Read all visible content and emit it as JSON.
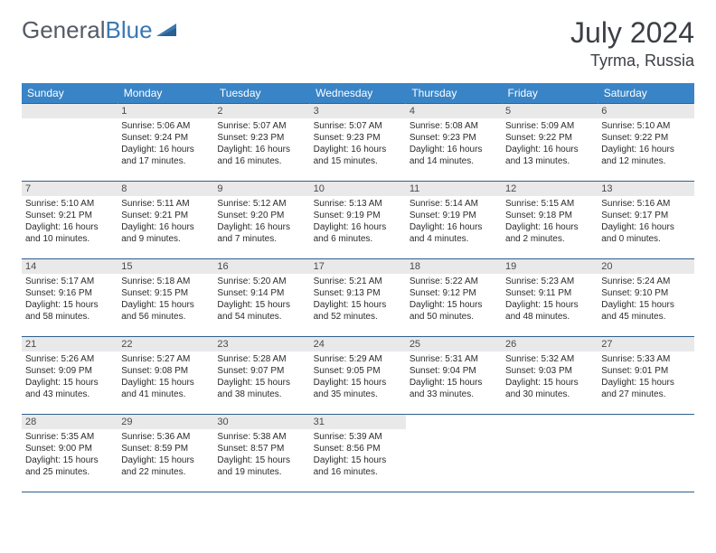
{
  "brand": {
    "general": "General",
    "blue": "Blue"
  },
  "title": "July 2024",
  "location": "Tyrma, Russia",
  "weekdays": [
    "Sunday",
    "Monday",
    "Tuesday",
    "Wednesday",
    "Thursday",
    "Friday",
    "Saturday"
  ],
  "colors": {
    "header_bg": "#3984c6",
    "header_text": "#ffffff",
    "daynum_bg": "#e9e9e9",
    "border": "#2f5f8f",
    "brand_gray": "#555b66",
    "brand_blue": "#3a78b3"
  },
  "days": [
    {
      "n": 1,
      "sr": "5:06 AM",
      "ss": "9:24 PM",
      "dl": "16 hours and 17 minutes."
    },
    {
      "n": 2,
      "sr": "5:07 AM",
      "ss": "9:23 PM",
      "dl": "16 hours and 16 minutes."
    },
    {
      "n": 3,
      "sr": "5:07 AM",
      "ss": "9:23 PM",
      "dl": "16 hours and 15 minutes."
    },
    {
      "n": 4,
      "sr": "5:08 AM",
      "ss": "9:23 PM",
      "dl": "16 hours and 14 minutes."
    },
    {
      "n": 5,
      "sr": "5:09 AM",
      "ss": "9:22 PM",
      "dl": "16 hours and 13 minutes."
    },
    {
      "n": 6,
      "sr": "5:10 AM",
      "ss": "9:22 PM",
      "dl": "16 hours and 12 minutes."
    },
    {
      "n": 7,
      "sr": "5:10 AM",
      "ss": "9:21 PM",
      "dl": "16 hours and 10 minutes."
    },
    {
      "n": 8,
      "sr": "5:11 AM",
      "ss": "9:21 PM",
      "dl": "16 hours and 9 minutes."
    },
    {
      "n": 9,
      "sr": "5:12 AM",
      "ss": "9:20 PM",
      "dl": "16 hours and 7 minutes."
    },
    {
      "n": 10,
      "sr": "5:13 AM",
      "ss": "9:19 PM",
      "dl": "16 hours and 6 minutes."
    },
    {
      "n": 11,
      "sr": "5:14 AM",
      "ss": "9:19 PM",
      "dl": "16 hours and 4 minutes."
    },
    {
      "n": 12,
      "sr": "5:15 AM",
      "ss": "9:18 PM",
      "dl": "16 hours and 2 minutes."
    },
    {
      "n": 13,
      "sr": "5:16 AM",
      "ss": "9:17 PM",
      "dl": "16 hours and 0 minutes."
    },
    {
      "n": 14,
      "sr": "5:17 AM",
      "ss": "9:16 PM",
      "dl": "15 hours and 58 minutes."
    },
    {
      "n": 15,
      "sr": "5:18 AM",
      "ss": "9:15 PM",
      "dl": "15 hours and 56 minutes."
    },
    {
      "n": 16,
      "sr": "5:20 AM",
      "ss": "9:14 PM",
      "dl": "15 hours and 54 minutes."
    },
    {
      "n": 17,
      "sr": "5:21 AM",
      "ss": "9:13 PM",
      "dl": "15 hours and 52 minutes."
    },
    {
      "n": 18,
      "sr": "5:22 AM",
      "ss": "9:12 PM",
      "dl": "15 hours and 50 minutes."
    },
    {
      "n": 19,
      "sr": "5:23 AM",
      "ss": "9:11 PM",
      "dl": "15 hours and 48 minutes."
    },
    {
      "n": 20,
      "sr": "5:24 AM",
      "ss": "9:10 PM",
      "dl": "15 hours and 45 minutes."
    },
    {
      "n": 21,
      "sr": "5:26 AM",
      "ss": "9:09 PM",
      "dl": "15 hours and 43 minutes."
    },
    {
      "n": 22,
      "sr": "5:27 AM",
      "ss": "9:08 PM",
      "dl": "15 hours and 41 minutes."
    },
    {
      "n": 23,
      "sr": "5:28 AM",
      "ss": "9:07 PM",
      "dl": "15 hours and 38 minutes."
    },
    {
      "n": 24,
      "sr": "5:29 AM",
      "ss": "9:05 PM",
      "dl": "15 hours and 35 minutes."
    },
    {
      "n": 25,
      "sr": "5:31 AM",
      "ss": "9:04 PM",
      "dl": "15 hours and 33 minutes."
    },
    {
      "n": 26,
      "sr": "5:32 AM",
      "ss": "9:03 PM",
      "dl": "15 hours and 30 minutes."
    },
    {
      "n": 27,
      "sr": "5:33 AM",
      "ss": "9:01 PM",
      "dl": "15 hours and 27 minutes."
    },
    {
      "n": 28,
      "sr": "5:35 AM",
      "ss": "9:00 PM",
      "dl": "15 hours and 25 minutes."
    },
    {
      "n": 29,
      "sr": "5:36 AM",
      "ss": "8:59 PM",
      "dl": "15 hours and 22 minutes."
    },
    {
      "n": 30,
      "sr": "5:38 AM",
      "ss": "8:57 PM",
      "dl": "15 hours and 19 minutes."
    },
    {
      "n": 31,
      "sr": "5:39 AM",
      "ss": "8:56 PM",
      "dl": "15 hours and 16 minutes."
    }
  ],
  "first_weekday_offset": 1
}
